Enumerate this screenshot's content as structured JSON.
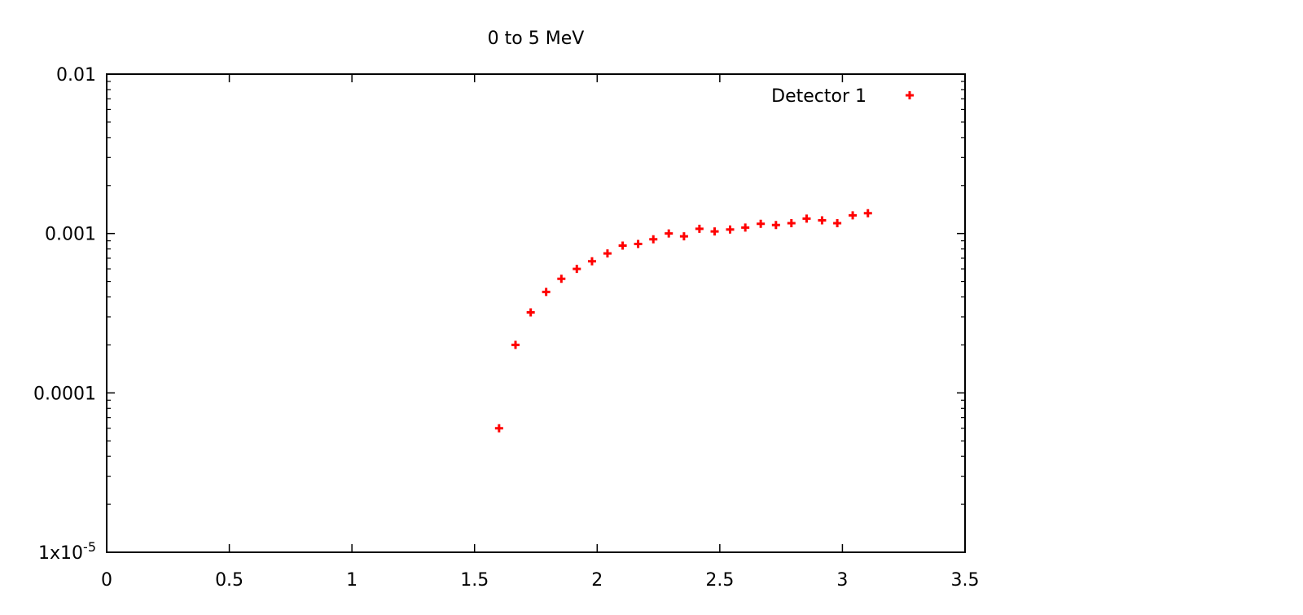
{
  "chart_data": {
    "type": "scatter",
    "title": "0 to 5 MeV",
    "xlabel": "",
    "ylabel": "",
    "xlim": [
      0,
      3.5
    ],
    "ylim": [
      1e-05,
      0.01
    ],
    "yscale": "log",
    "grid": false,
    "legend_position": "top-right",
    "x_ticks": [
      "0",
      "0.5",
      "1",
      "1.5",
      "2",
      "2.5",
      "3",
      "3.5"
    ],
    "y_ticks": [
      {
        "value": 0.01,
        "label": "0.01"
      },
      {
        "value": 0.001,
        "label": "0.001"
      },
      {
        "value": 0.0001,
        "label": "0.0001"
      },
      {
        "value": 1e-05,
        "label": "1x10",
        "exponent": "-5"
      }
    ],
    "series": [
      {
        "name": "Detector 1",
        "color": "#ff0000",
        "marker": "plus",
        "x": [
          1.6,
          1.667,
          1.729,
          1.792,
          1.854,
          1.917,
          1.979,
          2.042,
          2.104,
          2.167,
          2.229,
          2.292,
          2.354,
          2.417,
          2.479,
          2.542,
          2.604,
          2.667,
          2.729,
          2.792,
          2.854,
          2.917,
          2.979,
          3.042,
          3.104
        ],
        "y": [
          6e-05,
          0.0002,
          0.00032,
          0.00043,
          0.00052,
          0.0006,
          0.00067,
          0.00075,
          0.00084,
          0.00086,
          0.00092,
          0.001,
          0.00096,
          0.00107,
          0.00103,
          0.00106,
          0.00109,
          0.00115,
          0.00113,
          0.00116,
          0.00124,
          0.00121,
          0.00116,
          0.0013,
          0.00134
        ]
      }
    ]
  }
}
